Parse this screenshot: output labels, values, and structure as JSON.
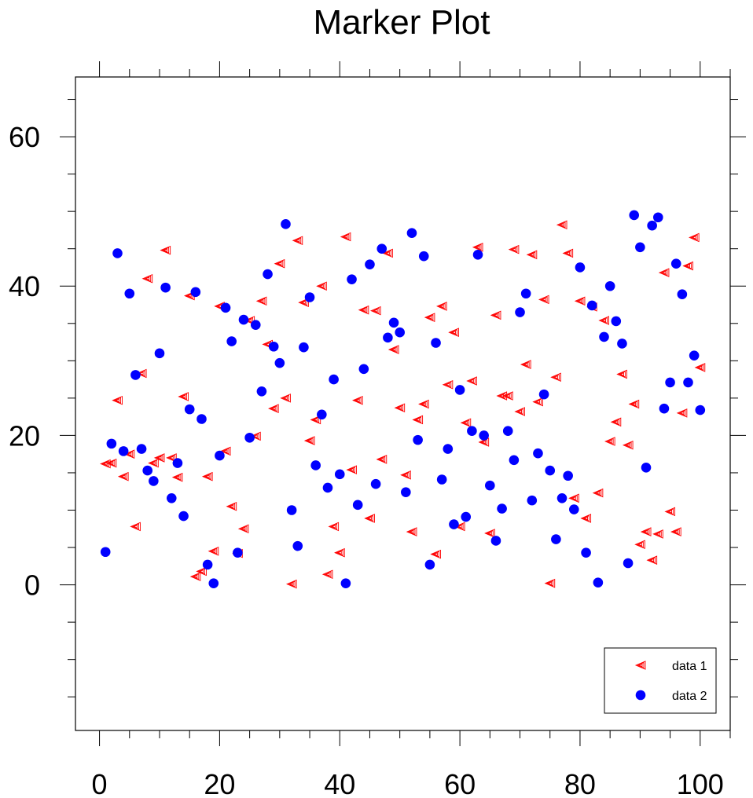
{
  "chart_data": {
    "type": "scatter",
    "title": "Marker Plot",
    "xlabel": "",
    "ylabel": "",
    "xlim": [
      -4,
      105
    ],
    "ylim": [
      -19.5,
      68
    ],
    "x_major_ticks": [
      0,
      20,
      40,
      60,
      80,
      100
    ],
    "x_minor_step": 5,
    "y_major_ticks": [
      0,
      20,
      40,
      60
    ],
    "y_minor_step": 5,
    "x_tick_labels": [
      "0",
      "20",
      "40",
      "60",
      "80",
      "100"
    ],
    "y_tick_labels": [
      "0",
      "20",
      "40",
      "60"
    ],
    "grid": false,
    "legend_position": "bottom-right",
    "colors": {
      "data1": "#ff0000",
      "data2": "#0000ff"
    },
    "series": [
      {
        "name": "data 1",
        "marker": "hollow-triangle-left",
        "color": "#ff0000",
        "points": [
          [
            1,
            16.2
          ],
          [
            2,
            16.3
          ],
          [
            3,
            24.7
          ],
          [
            4,
            14.5
          ],
          [
            5,
            17.5
          ],
          [
            6,
            7.8
          ],
          [
            7,
            28.3
          ],
          [
            8,
            41
          ],
          [
            9,
            16.3
          ],
          [
            10,
            17
          ],
          [
            11,
            44.8
          ],
          [
            12,
            17
          ],
          [
            13,
            14.4
          ],
          [
            14,
            25.2
          ],
          [
            15,
            38.7
          ],
          [
            16,
            1.1
          ],
          [
            17,
            1.8
          ],
          [
            18,
            14.5
          ],
          [
            19,
            4.5
          ],
          [
            20,
            37.3
          ],
          [
            21,
            17.9
          ],
          [
            22,
            10.5
          ],
          [
            23,
            4.2
          ],
          [
            24,
            7.5
          ],
          [
            25,
            35.4
          ],
          [
            26,
            19.9
          ],
          [
            27,
            38
          ],
          [
            28,
            32.2
          ],
          [
            29,
            23.6
          ],
          [
            30,
            43
          ],
          [
            31,
            25
          ],
          [
            32,
            0.1
          ],
          [
            33,
            46.1
          ],
          [
            34,
            37.8
          ],
          [
            35,
            19.3
          ],
          [
            36,
            22.1
          ],
          [
            37,
            40
          ],
          [
            38,
            1.4
          ],
          [
            39,
            7.8
          ],
          [
            40,
            4.3
          ],
          [
            41,
            46.6
          ],
          [
            42,
            15.4
          ],
          [
            43,
            24.7
          ],
          [
            44,
            36.8
          ],
          [
            45,
            8.9
          ],
          [
            46,
            36.7
          ],
          [
            47,
            16.8
          ],
          [
            48,
            44.4
          ],
          [
            49,
            31.5
          ],
          [
            50,
            23.7
          ],
          [
            51,
            14.7
          ],
          [
            52,
            7.1
          ],
          [
            53,
            22.1
          ],
          [
            54,
            24.2
          ],
          [
            55,
            35.8
          ],
          [
            56,
            4.1
          ],
          [
            57,
            37.3
          ],
          [
            58,
            26.8
          ],
          [
            59,
            33.8
          ],
          [
            60,
            7.8
          ],
          [
            61,
            21.7
          ],
          [
            62,
            27.3
          ],
          [
            63,
            45.2
          ],
          [
            64,
            19.1
          ],
          [
            65,
            6.9
          ],
          [
            66,
            36.1
          ],
          [
            67,
            25.3
          ],
          [
            68,
            25.3
          ],
          [
            69,
            44.9
          ],
          [
            70,
            23.2
          ],
          [
            71,
            29.5
          ],
          [
            72,
            44.2
          ],
          [
            73,
            24.5
          ],
          [
            74,
            38.2
          ],
          [
            75,
            0.2
          ],
          [
            76,
            27.8
          ],
          [
            77,
            48.2
          ],
          [
            78,
            44.4
          ],
          [
            79,
            11.6
          ],
          [
            80,
            38
          ],
          [
            81,
            8.9
          ],
          [
            82,
            37.2
          ],
          [
            83,
            12.3
          ],
          [
            84,
            35.4
          ],
          [
            85,
            19.2
          ],
          [
            86,
            21.8
          ],
          [
            87,
            28.2
          ],
          [
            88,
            18.7
          ],
          [
            89,
            24.2
          ],
          [
            90,
            5.4
          ],
          [
            91,
            7.1
          ],
          [
            92,
            3.3
          ],
          [
            93,
            6.8
          ],
          [
            94,
            41.8
          ],
          [
            95,
            9.8
          ],
          [
            96,
            7.1
          ],
          [
            97,
            23
          ],
          [
            98,
            42.7
          ],
          [
            99,
            46.5
          ],
          [
            100,
            29.1
          ]
        ]
      },
      {
        "name": "data 2",
        "marker": "filled-circle",
        "color": "#0000ff",
        "points": [
          [
            1,
            4.4
          ],
          [
            2,
            18.9
          ],
          [
            3,
            44.4
          ],
          [
            4,
            17.9
          ],
          [
            5,
            39
          ],
          [
            6,
            28.1
          ],
          [
            7,
            18.2
          ],
          [
            8,
            15.3
          ],
          [
            9,
            13.9
          ],
          [
            10,
            31
          ],
          [
            11,
            39.8
          ],
          [
            12,
            11.6
          ],
          [
            13,
            16.3
          ],
          [
            14,
            9.2
          ],
          [
            15,
            23.5
          ],
          [
            16,
            39.2
          ],
          [
            17,
            22.2
          ],
          [
            18,
            2.7
          ],
          [
            19,
            0.2
          ],
          [
            20,
            17.3
          ],
          [
            21,
            37.1
          ],
          [
            22,
            32.6
          ],
          [
            23,
            4.3
          ],
          [
            24,
            35.5
          ],
          [
            25,
            19.7
          ],
          [
            26,
            34.8
          ],
          [
            27,
            25.9
          ],
          [
            28,
            41.6
          ],
          [
            29,
            31.9
          ],
          [
            30,
            29.7
          ],
          [
            31,
            48.3
          ],
          [
            32,
            10
          ],
          [
            33,
            5.2
          ],
          [
            34,
            31.8
          ],
          [
            35,
            38.5
          ],
          [
            36,
            16
          ],
          [
            37,
            22.8
          ],
          [
            38,
            13
          ],
          [
            39,
            27.5
          ],
          [
            40,
            14.8
          ],
          [
            41,
            0.2
          ],
          [
            42,
            40.9
          ],
          [
            43,
            10.7
          ],
          [
            44,
            28.9
          ],
          [
            45,
            42.9
          ],
          [
            46,
            13.5
          ],
          [
            47,
            45
          ],
          [
            48,
            33.1
          ],
          [
            49,
            35.1
          ],
          [
            50,
            33.8
          ],
          [
            51,
            12.4
          ],
          [
            52,
            47.1
          ],
          [
            53,
            19.4
          ],
          [
            54,
            44
          ],
          [
            55,
            2.7
          ],
          [
            56,
            32.4
          ],
          [
            57,
            14.1
          ],
          [
            58,
            18.2
          ],
          [
            59,
            8.1
          ],
          [
            60,
            26.1
          ],
          [
            61,
            9.1
          ],
          [
            62,
            20.6
          ],
          [
            63,
            44.2
          ],
          [
            64,
            20
          ],
          [
            65,
            13.3
          ],
          [
            66,
            5.9
          ],
          [
            67,
            10.2
          ],
          [
            68,
            20.6
          ],
          [
            69,
            16.7
          ],
          [
            70,
            36.5
          ],
          [
            71,
            39
          ],
          [
            72,
            11.3
          ],
          [
            73,
            17.6
          ],
          [
            74,
            25.5
          ],
          [
            75,
            15.3
          ],
          [
            76,
            6.1
          ],
          [
            77,
            11.6
          ],
          [
            78,
            14.6
          ],
          [
            79,
            10.1
          ],
          [
            80,
            42.5
          ],
          [
            81,
            4.3
          ],
          [
            82,
            37.4
          ],
          [
            83,
            0.3
          ],
          [
            84,
            33.2
          ],
          [
            85,
            40
          ],
          [
            86,
            35.3
          ],
          [
            87,
            32.3
          ],
          [
            88,
            2.9
          ],
          [
            89,
            49.5
          ],
          [
            90,
            45.2
          ],
          [
            91,
            15.7
          ],
          [
            92,
            48.1
          ],
          [
            93,
            49.2
          ],
          [
            94,
            23.6
          ],
          [
            95,
            27.1
          ],
          [
            96,
            43
          ],
          [
            97,
            38.9
          ],
          [
            98,
            27.1
          ],
          [
            99,
            30.7
          ],
          [
            100,
            23.4
          ]
        ]
      }
    ]
  }
}
